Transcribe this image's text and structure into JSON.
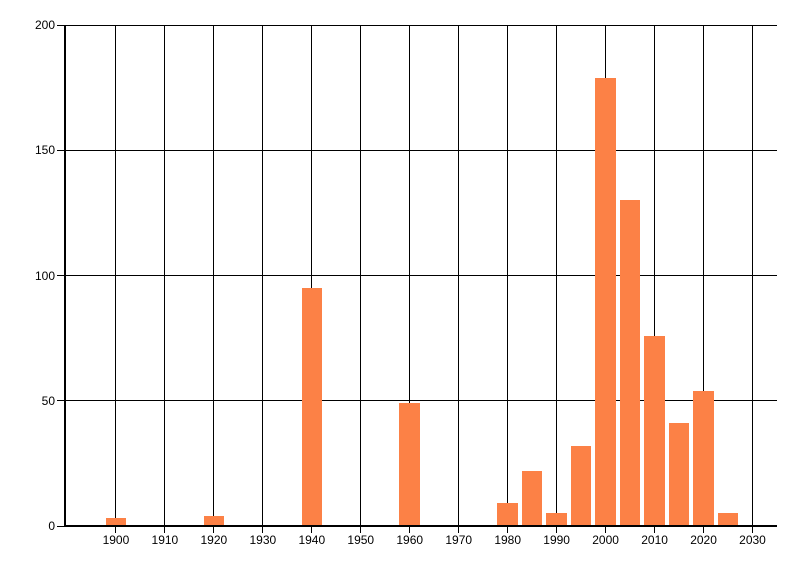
{
  "chart_data": {
    "type": "bar",
    "title": "",
    "xlabel": "",
    "ylabel": "",
    "x": [
      1900,
      1920,
      1940,
      1960,
      1980,
      1985,
      1990,
      1995,
      2000,
      2005,
      2010,
      2015,
      2020,
      2025
    ],
    "values": [
      3,
      4,
      95,
      49,
      9,
      22,
      5,
      32,
      179,
      130,
      76,
      41,
      54,
      5
    ],
    "bar_width_years": 4.2,
    "bar_color": "#FC8146",
    "x_ticks": [
      1900,
      1910,
      1920,
      1930,
      1940,
      1950,
      1960,
      1970,
      1980,
      1990,
      2000,
      2010,
      2020,
      2030
    ],
    "y_ticks": [
      0,
      50,
      100,
      150,
      200
    ],
    "xlim": [
      1889.6,
      2035.0
    ],
    "ylim": [
      0,
      200
    ],
    "grid": true,
    "grid_color": "#000000",
    "axis_color": "#000000",
    "text_color": "#000000",
    "background_color": "#ffffff",
    "legend_position": "none"
  }
}
